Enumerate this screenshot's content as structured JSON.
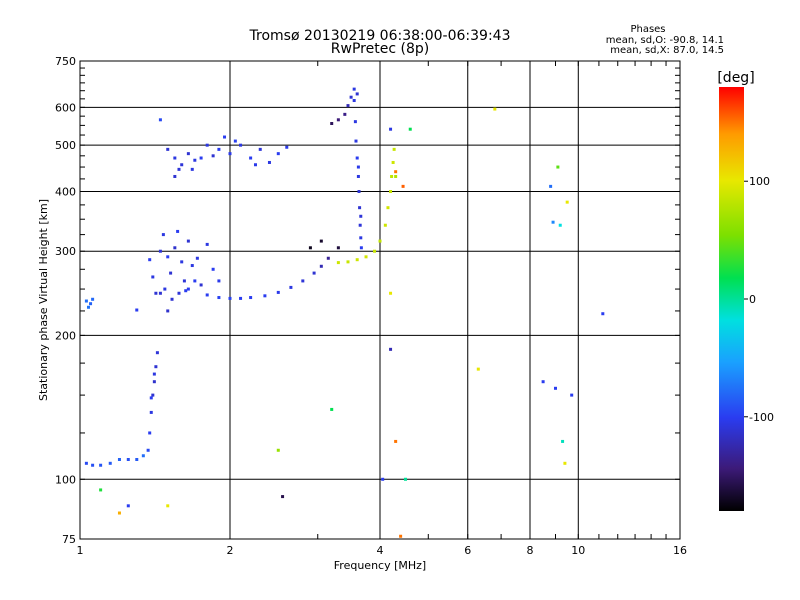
{
  "figure": {
    "title_line1": "Tromsø 20130219 06:38:00-06:39:43",
    "title_line2": "RwPretec (8p)",
    "phases_heading": "Phases",
    "phases_o": "mean, sd,O: -90.8, 14.1",
    "phases_x": "mean, sd,X:  87.0, 14.5"
  },
  "colorbar": {
    "label": "[deg]",
    "ticks": [
      {
        "value": 100,
        "label": "100"
      },
      {
        "value": 0,
        "label": "0"
      },
      {
        "value": -100,
        "label": "-100"
      }
    ],
    "range": [
      -180,
      180
    ],
    "colormap": [
      "#000000",
      "#3c1a78",
      "#2a3cf0",
      "#1aa0ff",
      "#00e0e0",
      "#00e050",
      "#7ce000",
      "#e8e800",
      "#ff9a00",
      "#ff0000"
    ]
  },
  "chart_data": {
    "type": "scatter",
    "xlabel": "Frequency [MHz]",
    "ylabel": "Stationary phase Virtual Height [km]",
    "xscale": "log2",
    "yscale": "log",
    "xlim": [
      1,
      16
    ],
    "ylim": [
      75,
      750
    ],
    "x_ticks": [
      {
        "value": 1,
        "label": "1"
      },
      {
        "value": 2,
        "label": "2"
      },
      {
        "value": 4,
        "label": "4"
      },
      {
        "value": 6,
        "label": "6"
      },
      {
        "value": 8,
        "label": "8"
      },
      {
        "value": 10,
        "label": "10"
      },
      {
        "value": 16,
        "label": "16"
      }
    ],
    "y_ticks": [
      {
        "value": 75,
        "label": "75"
      },
      {
        "value": 100,
        "label": "100"
      },
      {
        "value": 200,
        "label": "200"
      },
      {
        "value": 300,
        "label": "300"
      },
      {
        "value": 400,
        "label": "400"
      },
      {
        "value": 500,
        "label": "500"
      },
      {
        "value": 600,
        "label": "600"
      },
      {
        "value": 750,
        "label": "750"
      }
    ],
    "grid": true,
    "series": [
      {
        "points": [
          [
            1.03,
            108,
            -95
          ],
          [
            1.06,
            107,
            -92
          ],
          [
            1.1,
            107,
            -90
          ],
          [
            1.15,
            108,
            -88
          ],
          [
            1.2,
            110,
            -85
          ],
          [
            1.25,
            110,
            -92
          ],
          [
            1.3,
            110,
            -88
          ],
          [
            1.34,
            112,
            -80
          ],
          [
            1.37,
            115,
            -95
          ],
          [
            1.38,
            125,
            -100
          ],
          [
            1.39,
            138,
            -105
          ],
          [
            1.4,
            150,
            -110
          ],
          [
            1.41,
            160,
            -112
          ],
          [
            1.42,
            172,
            -110
          ],
          [
            1.43,
            184,
            -108
          ],
          [
            1.39,
            148,
            -100
          ],
          [
            1.41,
            166,
            -105
          ],
          [
            1.03,
            236,
            -80
          ],
          [
            1.05,
            233,
            -85
          ],
          [
            1.06,
            238,
            -82
          ],
          [
            1.04,
            229,
            -78
          ],
          [
            1.3,
            226,
            -100
          ],
          [
            1.38,
            288,
            -100
          ],
          [
            1.4,
            265,
            -105
          ],
          [
            1.42,
            245,
            -110
          ],
          [
            1.45,
            300,
            -108
          ],
          [
            1.47,
            325,
            -105
          ],
          [
            1.5,
            292,
            -100
          ],
          [
            1.52,
            270,
            -110
          ],
          [
            1.55,
            305,
            -112
          ],
          [
            1.57,
            330,
            -100
          ],
          [
            1.6,
            285,
            -105
          ],
          [
            1.62,
            260,
            -108
          ],
          [
            1.65,
            315,
            -110
          ],
          [
            1.68,
            280,
            -105
          ],
          [
            1.7,
            260,
            -100
          ],
          [
            1.72,
            290,
            -105
          ],
          [
            1.75,
            255,
            -110
          ],
          [
            1.8,
            310,
            -105
          ],
          [
            1.85,
            275,
            -100
          ],
          [
            1.9,
            260,
            -102
          ],
          [
            1.48,
            250,
            -105
          ],
          [
            1.53,
            238,
            -110
          ],
          [
            1.58,
            245,
            -108
          ],
          [
            1.63,
            248,
            -100
          ],
          [
            1.45,
            245,
            -110
          ],
          [
            1.5,
            225,
            -112
          ],
          [
            1.65,
            250,
            -100
          ],
          [
            1.8,
            243,
            -100
          ],
          [
            1.9,
            240,
            -98
          ],
          [
            2.0,
            239,
            -98
          ],
          [
            2.1,
            239,
            -100
          ],
          [
            2.2,
            240,
            -100
          ],
          [
            2.35,
            242,
            -100
          ],
          [
            2.5,
            246,
            -102
          ],
          [
            2.65,
            252,
            -105
          ],
          [
            2.8,
            260,
            -108
          ],
          [
            2.95,
            270,
            -110
          ],
          [
            3.05,
            279,
            -120
          ],
          [
            3.15,
            290,
            -130
          ],
          [
            3.3,
            305,
            -160
          ],
          [
            1.5,
            490,
            -110
          ],
          [
            1.55,
            470,
            -105
          ],
          [
            1.6,
            455,
            -108
          ],
          [
            1.65,
            480,
            -110
          ],
          [
            1.7,
            465,
            -105
          ],
          [
            1.75,
            470,
            -100
          ],
          [
            1.8,
            500,
            -105
          ],
          [
            1.85,
            475,
            -110
          ],
          [
            1.9,
            490,
            -100
          ],
          [
            2.0,
            480,
            -102
          ],
          [
            2.1,
            500,
            -105
          ],
          [
            2.2,
            470,
            -100
          ],
          [
            2.3,
            490,
            -108
          ],
          [
            2.4,
            460,
            -105
          ],
          [
            2.5,
            480,
            -100
          ],
          [
            2.6,
            495,
            -102
          ],
          [
            1.55,
            430,
            -110
          ],
          [
            1.68,
            445,
            -105
          ],
          [
            1.95,
            520,
            -100
          ],
          [
            2.05,
            510,
            -98
          ],
          [
            2.25,
            455,
            -102
          ],
          [
            1.45,
            565,
            -95
          ],
          [
            1.58,
            445,
            -108
          ],
          [
            3.2,
            555,
            -150
          ],
          [
            3.3,
            565,
            -140
          ],
          [
            3.4,
            580,
            -135
          ],
          [
            3.45,
            605,
            -120
          ],
          [
            3.5,
            630,
            -110
          ],
          [
            3.55,
            620,
            -105
          ],
          [
            3.57,
            560,
            -105
          ],
          [
            3.58,
            510,
            -105
          ],
          [
            3.6,
            470,
            -100
          ],
          [
            3.62,
            430,
            -105
          ],
          [
            3.63,
            400,
            -108
          ],
          [
            3.64,
            370,
            -110
          ],
          [
            3.65,
            340,
            -108
          ],
          [
            3.66,
            320,
            -105
          ],
          [
            3.67,
            305,
            -100
          ],
          [
            3.6,
            640,
            -110
          ],
          [
            3.55,
            655,
            -105
          ],
          [
            3.62,
            450,
            -102
          ],
          [
            3.66,
            355,
            -108
          ],
          [
            3.3,
            284,
            90
          ],
          [
            3.45,
            285,
            88
          ],
          [
            3.6,
            288,
            90
          ],
          [
            3.75,
            292,
            92
          ],
          [
            3.9,
            300,
            88
          ],
          [
            4.0,
            315,
            85
          ],
          [
            4.1,
            340,
            90
          ],
          [
            4.15,
            370,
            92
          ],
          [
            4.2,
            400,
            88
          ],
          [
            4.22,
            430,
            85
          ],
          [
            4.25,
            460,
            90
          ],
          [
            4.27,
            490,
            88
          ],
          [
            4.3,
            430,
            80
          ],
          [
            2.9,
            305,
            -170
          ],
          [
            3.05,
            315,
            -165
          ],
          [
            1.25,
            88,
            -100
          ],
          [
            2.55,
            92,
            -155
          ],
          [
            4.05,
            100,
            -100
          ],
          [
            4.2,
            187,
            -120
          ],
          [
            4.2,
            540,
            -105
          ],
          [
            4.5,
            100,
            0
          ],
          [
            6.3,
            170,
            100
          ],
          [
            6.8,
            595,
            100
          ],
          [
            8.8,
            410,
            -80
          ],
          [
            9.1,
            450,
            50
          ],
          [
            9.5,
            380,
            100
          ],
          [
            9.4,
            108,
            100
          ],
          [
            9.3,
            120,
            -10
          ],
          [
            9.0,
            155,
            -100
          ],
          [
            9.2,
            340,
            -20
          ],
          [
            8.9,
            345,
            -70
          ],
          [
            11.2,
            222,
            -100
          ],
          [
            4.6,
            540,
            20
          ],
          [
            8.5,
            160,
            -100
          ],
          [
            9.7,
            150,
            -100
          ],
          [
            3.2,
            140,
            20
          ],
          [
            1.5,
            88,
            100
          ],
          [
            1.2,
            85,
            130
          ],
          [
            1.1,
            95,
            30
          ],
          [
            2.5,
            115,
            70
          ],
          [
            4.3,
            120,
            150
          ],
          [
            4.4,
            76,
            150
          ],
          [
            4.2,
            245,
            100
          ],
          [
            4.45,
            410,
            155
          ],
          [
            4.3,
            440,
            150
          ]
        ]
      }
    ]
  }
}
